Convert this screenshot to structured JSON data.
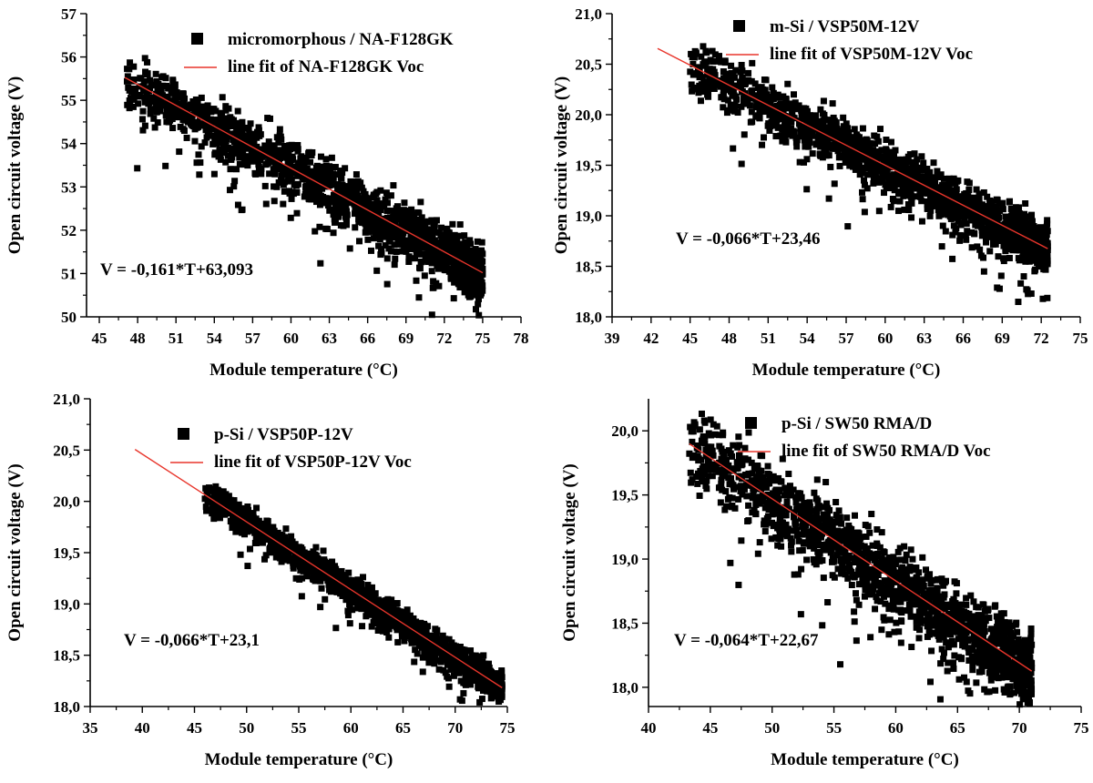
{
  "figure": "Open circuit voltage vs module temperature for four PV modules",
  "chart_data": [
    {
      "type": "scatter",
      "xlabel": "Module temperature (°C)",
      "ylabel": "Open circuit voltage (V)",
      "xlim": [
        44,
        78
      ],
      "ylim": [
        50,
        57
      ],
      "xticks": [
        45,
        48,
        51,
        54,
        57,
        60,
        63,
        66,
        69,
        72,
        75,
        78
      ],
      "yticks": [
        50,
        51,
        52,
        53,
        54,
        55,
        56,
        57
      ],
      "xtick_labels": [
        "45",
        "48",
        "51",
        "54",
        "57",
        "60",
        "63",
        "66",
        "69",
        "72",
        "75",
        "78"
      ],
      "ytick_labels": [
        "50",
        "51",
        "52",
        "53",
        "54",
        "55",
        "56",
        "57"
      ],
      "legend": [
        "micromorphous / NA-F128GK",
        "line fit of NA-F128GK Voc"
      ],
      "legend_position": "top-right",
      "equation": "V = -0,161*T+63,093",
      "fit": {
        "slope": -0.161,
        "intercept": 63.093,
        "x": [
          47,
          75
        ]
      },
      "scatter_range": {
        "x": [
          47,
          75
        ],
        "y_spread": 0.55
      },
      "colors": {
        "points": "#000000",
        "fit": "#e8352b"
      }
    },
    {
      "type": "scatter",
      "xlabel": "Module temperature (°C)",
      "ylabel": "Open circuit voltage (V)",
      "xlim": [
        39,
        75
      ],
      "ylim": [
        18,
        21
      ],
      "xticks": [
        39,
        42,
        45,
        48,
        51,
        54,
        57,
        60,
        63,
        66,
        69,
        72,
        75
      ],
      "yticks": [
        18,
        18.5,
        19,
        19.5,
        20,
        20.5,
        21
      ],
      "xtick_labels": [
        "39",
        "42",
        "45",
        "48",
        "51",
        "54",
        "57",
        "60",
        "63",
        "66",
        "69",
        "72",
        "75"
      ],
      "ytick_labels": [
        "18,0",
        "18,5",
        "19,0",
        "19,5",
        "20,0",
        "20,5",
        "21,0"
      ],
      "legend": [
        "m-Si / VSP50M-12V",
        "line fit of VSP50M-12V Voc"
      ],
      "legend_position": "top-right",
      "equation": "V = -0,066*T+23,46",
      "fit": {
        "slope": -0.066,
        "intercept": 23.46,
        "x": [
          42.5,
          72.5
        ]
      },
      "scatter_range": {
        "x": [
          45,
          72.5
        ],
        "y_spread": 0.22
      },
      "colors": {
        "points": "#000000",
        "fit": "#e8352b"
      }
    },
    {
      "type": "scatter",
      "xlabel": "Module temperature (°C)",
      "ylabel": "Open circuit voltage (V)",
      "xlim": [
        35,
        75
      ],
      "ylim": [
        18,
        21
      ],
      "xticks": [
        35,
        40,
        45,
        50,
        55,
        60,
        65,
        70,
        75
      ],
      "yticks": [
        18,
        18.5,
        19,
        19.5,
        20,
        20.5,
        21
      ],
      "xtick_labels": [
        "35",
        "40",
        "45",
        "50",
        "55",
        "60",
        "65",
        "70",
        "75"
      ],
      "ytick_labels": [
        "18,0",
        "18,5",
        "19,0",
        "19,5",
        "20,0",
        "20,5",
        "21,0"
      ],
      "legend": [
        "p-Si / VSP50P-12V",
        "line fit of VSP50P-12V Voc"
      ],
      "legend_position": "top-right",
      "equation": "V = -0,066*T+23,1",
      "fit": {
        "slope": -0.066,
        "intercept": 23.1,
        "x": [
          39.3,
          74.5
        ]
      },
      "scatter_range": {
        "x": [
          46,
          74.5
        ],
        "y_spread": 0.13
      },
      "colors": {
        "points": "#000000",
        "fit": "#e8352b"
      }
    },
    {
      "type": "scatter",
      "xlabel": "Module temperature (°C)",
      "ylabel": "Open circuit voltage (V)",
      "xlim": [
        40,
        75
      ],
      "ylim": [
        17.85,
        20.25
      ],
      "xticks": [
        40,
        45,
        50,
        55,
        60,
        65,
        70,
        75
      ],
      "yticks": [
        18,
        18.5,
        19,
        19.5,
        20
      ],
      "xtick_labels": [
        "40",
        "45",
        "50",
        "55",
        "60",
        "65",
        "70",
        "75"
      ],
      "ytick_labels": [
        "18,0",
        "18,5",
        "19,0",
        "19,5",
        "20,0"
      ],
      "legend": [
        "p-Si / SW50 RMA/D",
        "line fit of SW50 RMA/D Voc"
      ],
      "legend_position": "top-right",
      "equation": "V = -0,064*T+22,67",
      "fit": {
        "slope": -0.064,
        "intercept": 22.67,
        "x": [
          43.3,
          71
        ]
      },
      "scatter_range": {
        "x": [
          43.3,
          71
        ],
        "y_spread": 0.26
      },
      "colors": {
        "points": "#000000",
        "fit": "#e8352b"
      }
    }
  ]
}
